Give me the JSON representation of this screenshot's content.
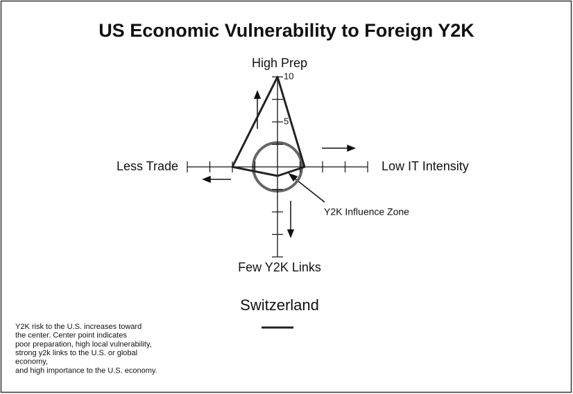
{
  "chart_data": {
    "type": "radar",
    "title": "US Economic Vulnerability to Foreign Y2K",
    "axes": [
      "High Prep",
      "Low IT Intensity",
      "Few Y2K Links",
      "Less Trade"
    ],
    "series": [
      {
        "name": "Switzerland",
        "color": "#222222",
        "values": [
          10,
          3,
          1,
          5
        ]
      }
    ],
    "rlim": [
      0,
      10
    ],
    "rticks": [
      5,
      10
    ],
    "rminor_ticks": [
      2.5,
      7.5
    ],
    "annotation": "Y2K Influence  Zone",
    "notes": [
      "Y2K risk to the U.S. increases toward",
      "the center. Center point indicates",
      "poor preparation, high local vulnerability,",
      "strong y2k links  to the U.S. or global",
      "economy,",
      "and high importance to the U.S. economy."
    ]
  }
}
